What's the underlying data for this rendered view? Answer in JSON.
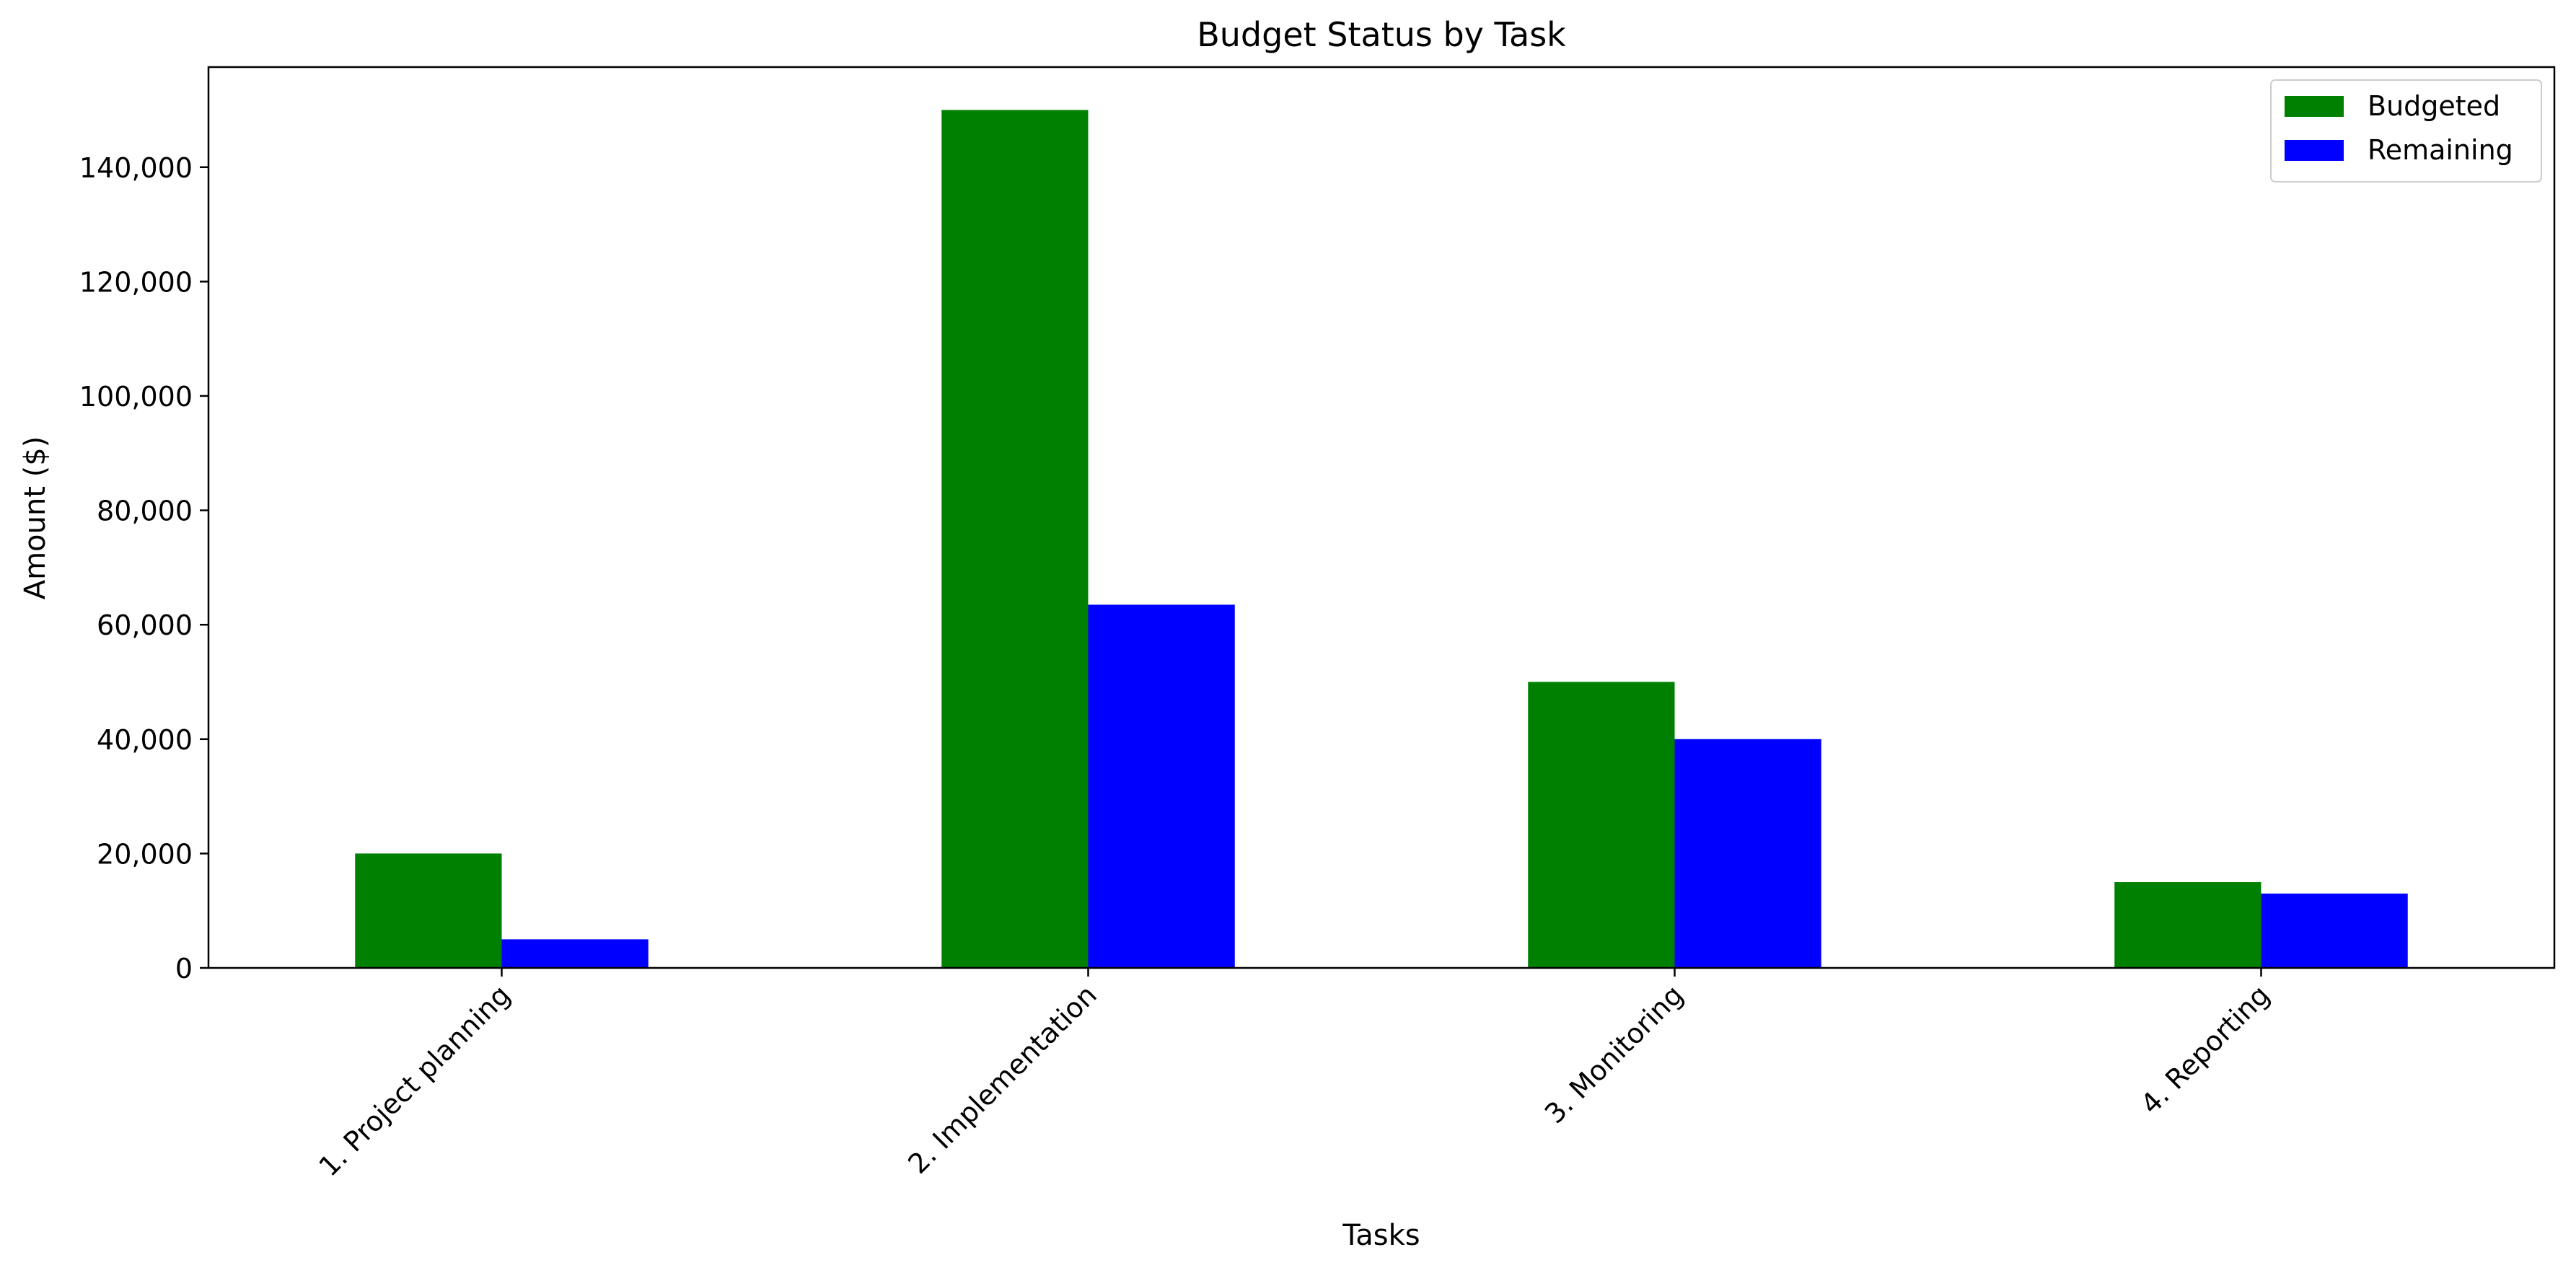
{
  "chart_data": {
    "type": "bar",
    "title": "Budget Status by Task",
    "xlabel": "Tasks",
    "ylabel": "Amount ($)",
    "categories": [
      "1. Project planning",
      "2. Implementation",
      "3. Monitoring",
      "4. Reporting"
    ],
    "series": [
      {
        "name": "Budgeted",
        "color": "#008000",
        "values": [
          20000,
          150000,
          50000,
          15000
        ]
      },
      {
        "name": "Remaining",
        "color": "#0000ff",
        "values": [
          5000,
          63500,
          40000,
          13000
        ]
      }
    ],
    "ylim": [
      0,
      157500
    ],
    "yticks": [
      0,
      20000,
      40000,
      60000,
      80000,
      100000,
      120000,
      140000
    ],
    "ytick_labels": [
      "0",
      "20,000",
      "40,000",
      "60,000",
      "80,000",
      "100,000",
      "120,000",
      "140,000"
    ],
    "grid": false,
    "legend_position": "top-right"
  }
}
